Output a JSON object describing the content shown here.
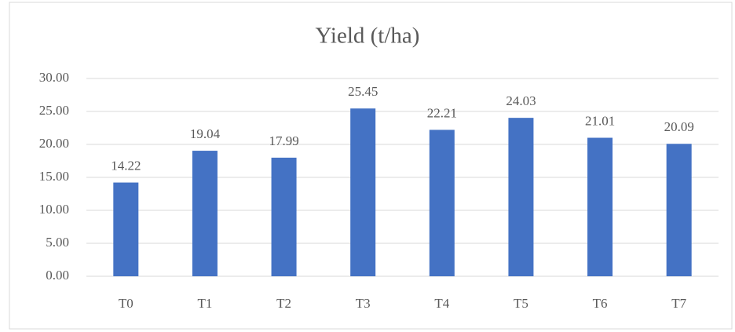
{
  "chart_data": {
    "type": "bar",
    "title": "Yield (t/ha)",
    "categories": [
      "T0",
      "T1",
      "T2",
      "T3",
      "T4",
      "T5",
      "T6",
      "T7"
    ],
    "values": [
      14.22,
      19.04,
      17.99,
      25.45,
      22.21,
      24.03,
      21.01,
      20.09
    ],
    "color": "#4472c4",
    "ylim": [
      0,
      30
    ],
    "yticks": [
      {
        "value": 0,
        "label": "0.00"
      },
      {
        "value": 5,
        "label": "5.00"
      },
      {
        "value": 10,
        "label": "10.00"
      },
      {
        "value": 15,
        "label": "15.00"
      },
      {
        "value": 20,
        "label": "20.00"
      },
      {
        "value": 25,
        "label": "25.00"
      },
      {
        "value": 30,
        "label": "30.00"
      }
    ],
    "grid": true
  }
}
